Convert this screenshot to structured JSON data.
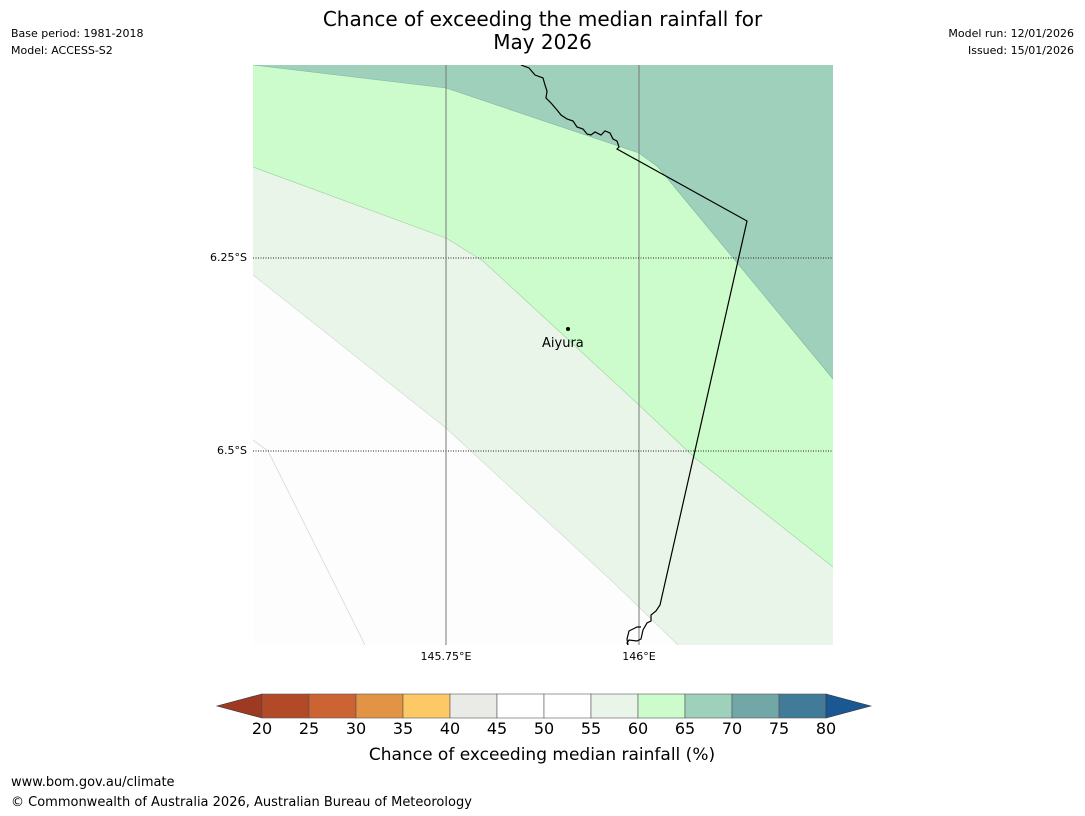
{
  "title": {
    "line1": "Chance of exceeding the median rainfall for",
    "line2": "May 2026"
  },
  "meta": {
    "base_period": "Base period: 1981-2018",
    "model": "Model: ACCESS-S2",
    "model_run": "Model run: 12/01/2026",
    "issued": "Issued: 15/01/2026"
  },
  "map": {
    "lat_labels": [
      "6.25°S",
      "6.5°S"
    ],
    "lon_labels": [
      "145.75°E",
      "146°E"
    ],
    "place": {
      "name": "Aiyura",
      "lat": -6.34,
      "lon": 145.906
    },
    "band_colors": {
      "c55_60": "#eaf5ea",
      "c60_65": "#ccfccc",
      "c65_70": "#9ed0bb",
      "c50_55": "#fdfdfd"
    }
  },
  "colorbar": {
    "ticks": [
      "20",
      "25",
      "30",
      "35",
      "40",
      "45",
      "50",
      "55",
      "60",
      "65",
      "70",
      "75",
      "80"
    ],
    "under_color": "#9e3a22",
    "over_color": "#1a5894",
    "colors": [
      "#b24a28",
      "#cc6333",
      "#e29444",
      "#fdc967",
      "#eaeae6",
      "#ffffff",
      "#ffffff",
      "#eaf5ea",
      "#ccfccc",
      "#9ed0bb",
      "#72a7a7",
      "#427b98"
    ],
    "label": "Chance of exceeding median rainfall (%)"
  },
  "footer": {
    "url": "www.bom.gov.au/climate",
    "copyright": "© Commonwealth of Australia 2026, Australian Bureau of Meteorology"
  }
}
